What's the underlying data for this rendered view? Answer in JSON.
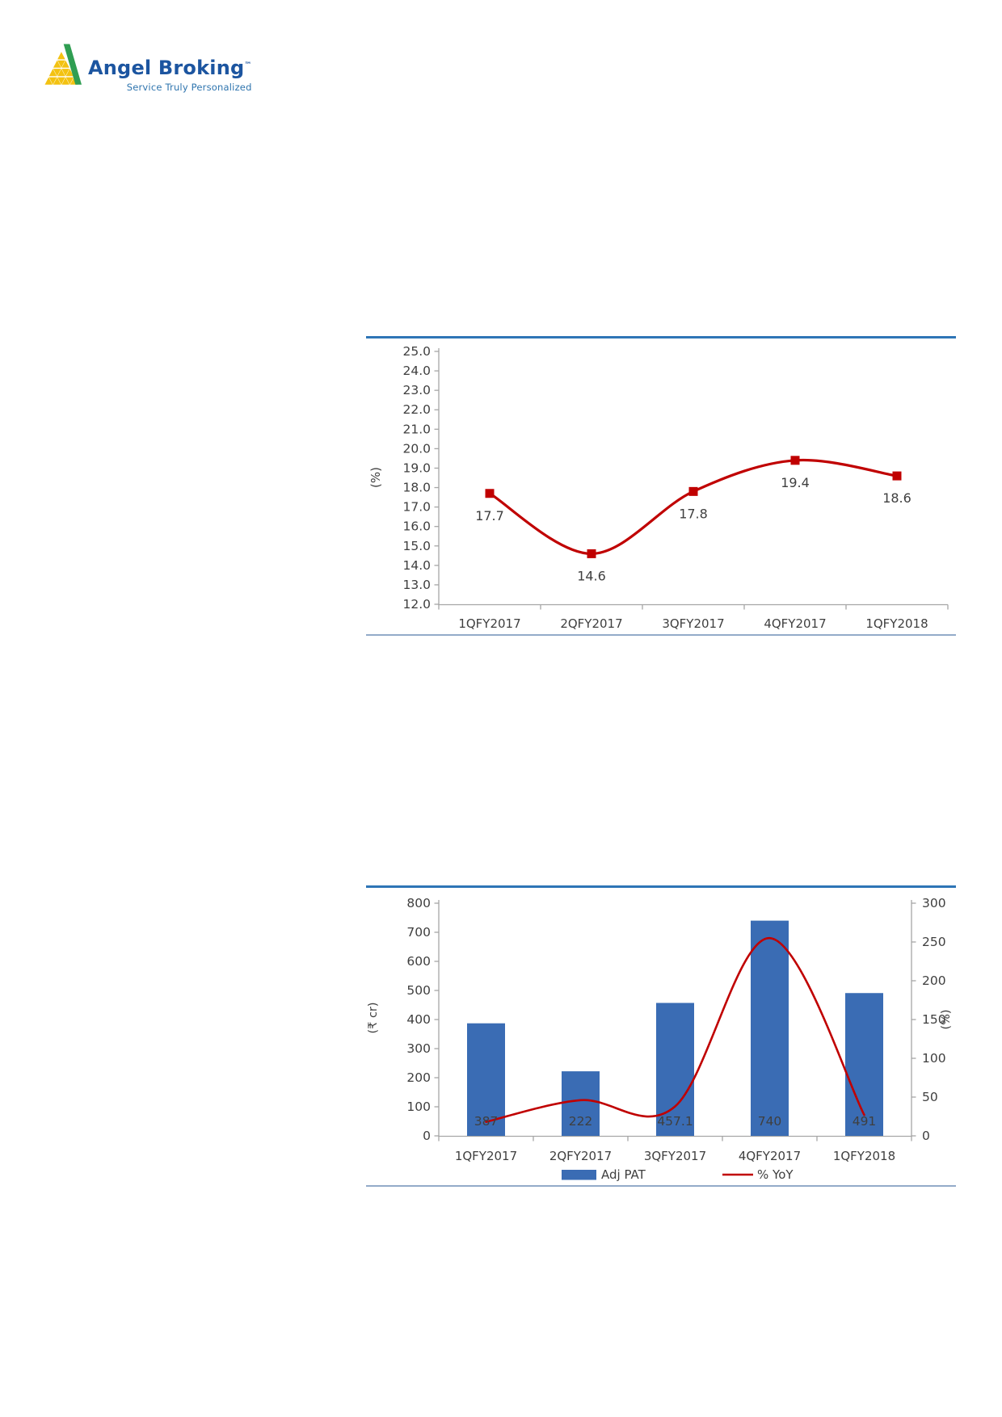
{
  "logo": {
    "brand": "Angel Broking",
    "trademark": "™",
    "tagline": "Service Truly Personalized",
    "brand_color": "#1c55a0",
    "tagline_color": "#2e74ae",
    "mark_green": "#2f9e52",
    "mark_yellow": "#f3c211"
  },
  "styles": {
    "rule_top": "#2e75b6",
    "rule_bottom": "#93abc9",
    "axis_color": "#a6a6a6",
    "text_color": "#3f3f3f",
    "bar_label_color": "#ffffff"
  },
  "chart_data": [
    {
      "type": "line",
      "title": "",
      "categories": [
        "1QFY2017",
        "2QFY2017",
        "3QFY2017",
        "4QFY2017",
        "1QFY2018"
      ],
      "values": [
        17.7,
        14.6,
        17.8,
        19.4,
        18.6
      ],
      "data_labels": [
        "17.7",
        "14.6",
        "17.8",
        "19.4",
        "18.6"
      ],
      "ylabel": "(%)",
      "xlabel": "",
      "ylim": [
        12.0,
        25.0
      ],
      "ystep": 1.0,
      "tick_decimals": 1,
      "grid": "off",
      "marker": "square",
      "line_color": "#c00000",
      "smooth": true
    },
    {
      "type": "bar",
      "title": "",
      "categories": [
        "1QFY2017",
        "2QFY2017",
        "3QFY2017",
        "4QFY2017",
        "1QFY2018"
      ],
      "series": [
        {
          "name": "Adj PAT",
          "type": "bar",
          "axis": "left",
          "values": [
            387,
            222,
            457.1,
            740,
            491
          ],
          "data_labels": [
            "387",
            "222",
            "457.1",
            "740",
            "491"
          ],
          "color": "#3a6cb4"
        },
        {
          "name": "% YoY",
          "type": "line",
          "axis": "right",
          "values": [
            18,
            46,
            38,
            255,
            27
          ],
          "color": "#c00000"
        }
      ],
      "left_axis": {
        "label": "(₹ cr)",
        "min": 0,
        "max": 800,
        "step": 100
      },
      "right_axis": {
        "label": "(%)",
        "min": 0,
        "max": 300,
        "step": 50
      },
      "grid": "off",
      "legend_position": "bottom",
      "legend": [
        "Adj PAT",
        "% YoY"
      ],
      "smooth": true
    }
  ]
}
